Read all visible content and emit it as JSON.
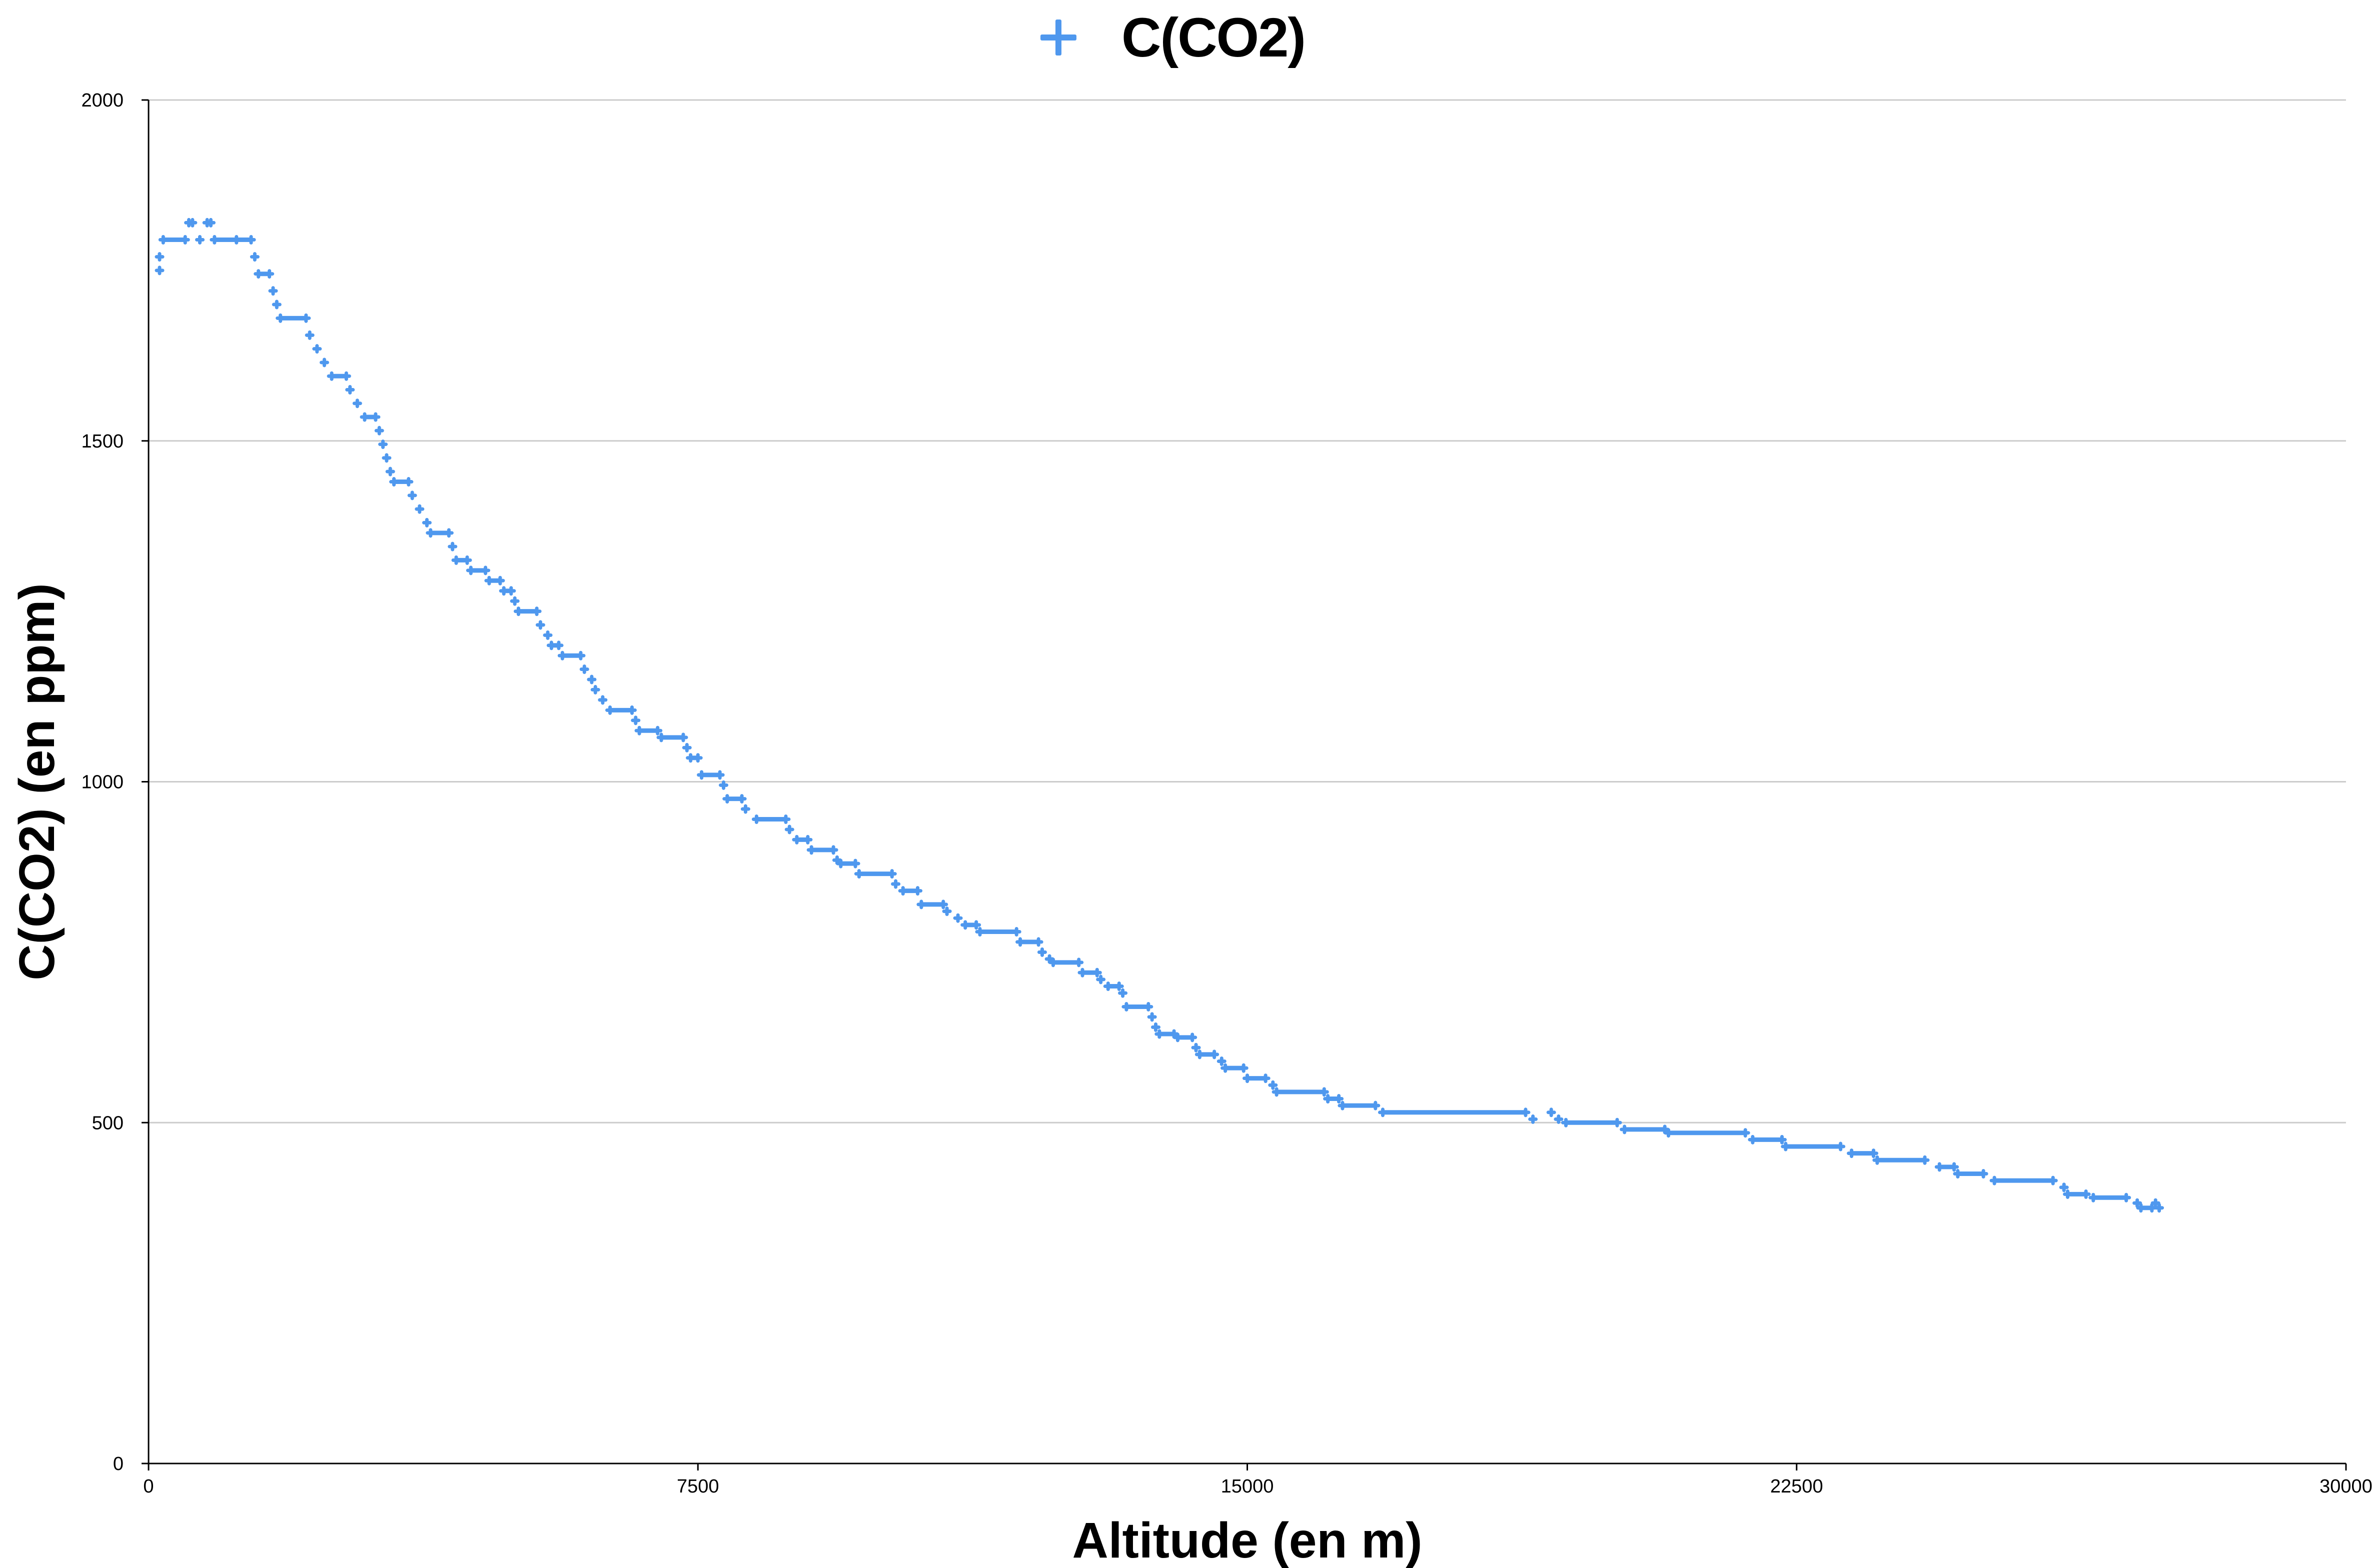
{
  "chart_data": {
    "type": "scatter",
    "xlabel": "Altitude (en m)",
    "ylabel": "C(CO2) (en ppm)",
    "xlim": [
      0,
      30000
    ],
    "ylim": [
      0,
      2000
    ],
    "x_ticks": [
      "0",
      "7500",
      "15000",
      "22500",
      "30000"
    ],
    "y_ticks": [
      "0",
      "500",
      "1000",
      "1500",
      "2000"
    ],
    "grid": "horizontal",
    "legend_position": "top-center",
    "marker": "plus",
    "series": [
      {
        "name": "C(CO2)",
        "color": "#4f98ee",
        "points": [
          [
            150,
            1750
          ],
          [
            150,
            1770
          ],
          [
            200,
            1795
          ],
          [
            500,
            1795
          ],
          [
            550,
            1820
          ],
          [
            600,
            1820
          ],
          [
            700,
            1795
          ],
          [
            800,
            1820
          ],
          [
            850,
            1820
          ],
          [
            900,
            1795
          ],
          [
            1200,
            1795
          ],
          [
            1400,
            1795
          ],
          [
            1450,
            1770
          ],
          [
            1500,
            1745
          ],
          [
            1650,
            1745
          ],
          [
            1700,
            1720
          ],
          [
            1750,
            1700
          ],
          [
            1800,
            1680
          ],
          [
            2150,
            1680
          ],
          [
            2200,
            1655
          ],
          [
            2300,
            1635
          ],
          [
            2400,
            1615
          ],
          [
            2500,
            1595
          ],
          [
            2700,
            1595
          ],
          [
            2750,
            1575
          ],
          [
            2850,
            1555
          ],
          [
            2950,
            1535
          ],
          [
            3100,
            1535
          ],
          [
            3150,
            1515
          ],
          [
            3200,
            1495
          ],
          [
            3250,
            1475
          ],
          [
            3300,
            1455
          ],
          [
            3350,
            1440
          ],
          [
            3550,
            1440
          ],
          [
            3600,
            1420
          ],
          [
            3700,
            1400
          ],
          [
            3800,
            1380
          ],
          [
            3850,
            1365
          ],
          [
            4100,
            1365
          ],
          [
            4150,
            1345
          ],
          [
            4200,
            1325
          ],
          [
            4350,
            1325
          ],
          [
            4400,
            1310
          ],
          [
            4600,
            1310
          ],
          [
            4650,
            1295
          ],
          [
            4800,
            1295
          ],
          [
            4850,
            1280
          ],
          [
            4950,
            1280
          ],
          [
            5000,
            1265
          ],
          [
            5050,
            1250
          ],
          [
            5300,
            1250
          ],
          [
            5350,
            1230
          ],
          [
            5450,
            1215
          ],
          [
            5500,
            1200
          ],
          [
            5600,
            1200
          ],
          [
            5650,
            1185
          ],
          [
            5900,
            1185
          ],
          [
            5950,
            1165
          ],
          [
            6050,
            1150
          ],
          [
            6100,
            1135
          ],
          [
            6200,
            1120
          ],
          [
            6300,
            1105
          ],
          [
            6600,
            1105
          ],
          [
            6650,
            1090
          ],
          [
            6700,
            1075
          ],
          [
            6950,
            1075
          ],
          [
            7000,
            1065
          ],
          [
            7300,
            1065
          ],
          [
            7350,
            1050
          ],
          [
            7400,
            1035
          ],
          [
            7500,
            1035
          ],
          [
            7550,
            1010
          ],
          [
            7800,
            1010
          ],
          [
            7850,
            995
          ],
          [
            7900,
            975
          ],
          [
            8100,
            975
          ],
          [
            8150,
            960
          ],
          [
            8300,
            945
          ],
          [
            8700,
            945
          ],
          [
            8750,
            930
          ],
          [
            8850,
            915
          ],
          [
            9000,
            915
          ],
          [
            9050,
            900
          ],
          [
            9350,
            900
          ],
          [
            9400,
            885
          ],
          [
            9450,
            880
          ],
          [
            9650,
            880
          ],
          [
            9700,
            865
          ],
          [
            10150,
            865
          ],
          [
            10200,
            850
          ],
          [
            10300,
            840
          ],
          [
            10500,
            840
          ],
          [
            10550,
            820
          ],
          [
            10850,
            820
          ],
          [
            10900,
            810
          ],
          [
            11050,
            800
          ],
          [
            11150,
            790
          ],
          [
            11300,
            790
          ],
          [
            11350,
            780
          ],
          [
            11850,
            780
          ],
          [
            11900,
            765
          ],
          [
            12150,
            765
          ],
          [
            12200,
            750
          ],
          [
            12300,
            740
          ],
          [
            12350,
            735
          ],
          [
            12700,
            735
          ],
          [
            12750,
            720
          ],
          [
            12950,
            720
          ],
          [
            13000,
            710
          ],
          [
            13100,
            700
          ],
          [
            13250,
            700
          ],
          [
            13300,
            690
          ],
          [
            13350,
            670
          ],
          [
            13650,
            670
          ],
          [
            13700,
            655
          ],
          [
            13750,
            640
          ],
          [
            13800,
            630
          ],
          [
            14000,
            630
          ],
          [
            14050,
            625
          ],
          [
            14250,
            625
          ],
          [
            14300,
            610
          ],
          [
            14350,
            600
          ],
          [
            14550,
            600
          ],
          [
            14650,
            590
          ],
          [
            14700,
            580
          ],
          [
            14950,
            580
          ],
          [
            15000,
            565
          ],
          [
            15250,
            565
          ],
          [
            15350,
            555
          ],
          [
            15400,
            545
          ],
          [
            16050,
            545
          ],
          [
            16100,
            535
          ],
          [
            16250,
            535
          ],
          [
            16300,
            525
          ],
          [
            16750,
            525
          ],
          [
            16850,
            515
          ],
          [
            18800,
            515
          ],
          [
            18900,
            505
          ],
          [
            19150,
            515
          ],
          [
            19250,
            505
          ],
          [
            19350,
            500
          ],
          [
            20050,
            500
          ],
          [
            20150,
            490
          ],
          [
            20700,
            490
          ],
          [
            20750,
            485
          ],
          [
            21800,
            485
          ],
          [
            21900,
            475
          ],
          [
            22300,
            475
          ],
          [
            22350,
            465
          ],
          [
            23100,
            465
          ],
          [
            23250,
            455
          ],
          [
            23550,
            455
          ],
          [
            23600,
            445
          ],
          [
            24250,
            445
          ],
          [
            24450,
            435
          ],
          [
            24650,
            435
          ],
          [
            24700,
            425
          ],
          [
            25050,
            425
          ],
          [
            25200,
            415
          ],
          [
            26000,
            415
          ],
          [
            26150,
            405
          ],
          [
            26200,
            395
          ],
          [
            26450,
            395
          ],
          [
            26550,
            390
          ],
          [
            27000,
            390
          ],
          [
            27150,
            382
          ],
          [
            27200,
            375
          ],
          [
            27350,
            375
          ],
          [
            27400,
            382
          ],
          [
            27450,
            375
          ]
        ]
      }
    ]
  }
}
